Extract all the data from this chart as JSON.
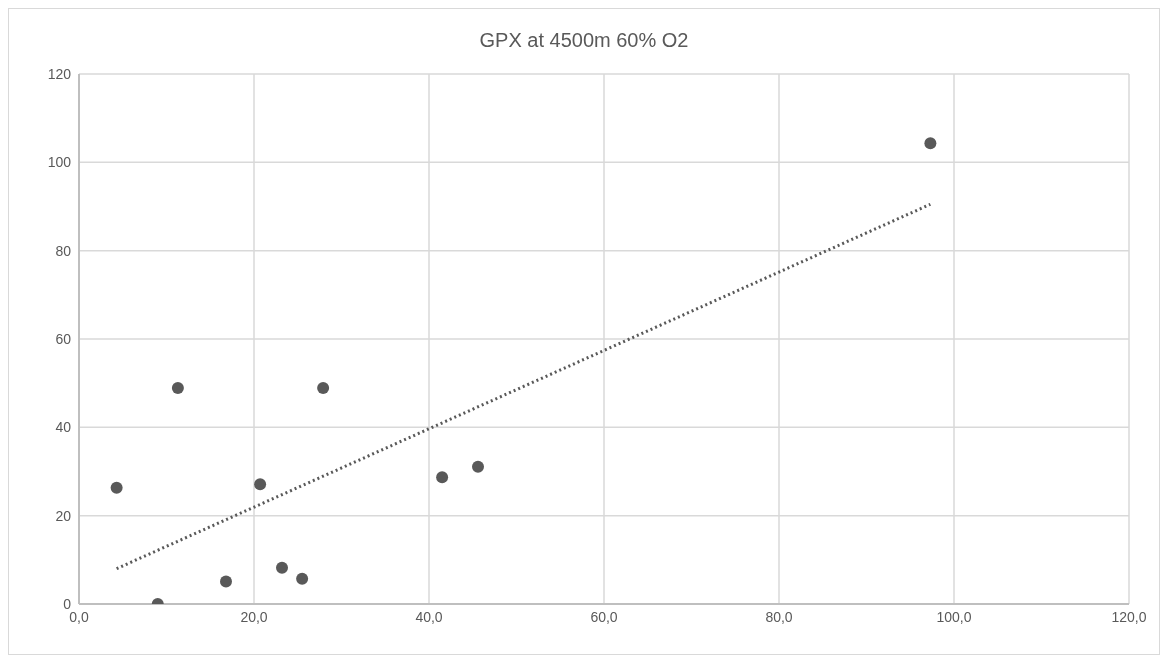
{
  "chart_data": {
    "type": "scatter",
    "title": "GPX at 4500m 60% O2",
    "series": [
      {
        "color": "#595959",
        "x": [
          4.3,
          11.3,
          9.0,
          16.8,
          20.7,
          23.2,
          25.5,
          27.9,
          41.5,
          45.6,
          97.3
        ],
        "values": [
          26.3,
          48.9,
          0,
          5.1,
          27.1,
          8.2,
          5.7,
          48.9,
          28.7,
          31.1,
          104.3
        ]
      },
      {
        "type": "line",
        "color": "#595959",
        "line_style": "dotted",
        "marker": "none",
        "x": [
          4.3,
          97.3
        ],
        "values": [
          8.0,
          90.5
        ]
      }
    ],
    "xlim": [
      0,
      120
    ],
    "xticks": [
      {
        "value": 0,
        "label": "0,0"
      },
      {
        "value": 20,
        "label": "20,0"
      },
      {
        "value": 40,
        "label": "40,0"
      },
      {
        "value": 60,
        "label": "60,0"
      },
      {
        "value": 80,
        "label": "80,0"
      },
      {
        "value": 100,
        "label": "100,0"
      },
      {
        "value": 120,
        "label": "120,0"
      }
    ],
    "ylim": [
      0,
      120
    ],
    "yticks": [
      0,
      20,
      40,
      60,
      80,
      100,
      120
    ],
    "grid": true,
    "marker": "circle"
  }
}
